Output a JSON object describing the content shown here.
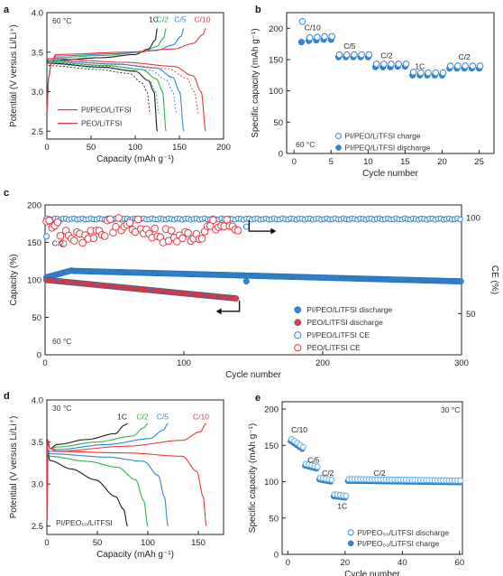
{
  "figure": {
    "panels": [
      {
        "id": "a",
        "label": "a"
      },
      {
        "id": "b",
        "label": "b"
      },
      {
        "id": "c",
        "label": "c"
      },
      {
        "id": "d",
        "label": "d"
      },
      {
        "id": "e",
        "label": "e"
      }
    ]
  },
  "colors": {
    "red": "#e8383d",
    "blue": "#2f86d6",
    "green": "#2fb34a",
    "black": "#1a1a1a",
    "gray": "#888888",
    "light_blue": "#5aaef0"
  },
  "chart_data": [
    {
      "id": "a",
      "type": "line",
      "xlabel": "Capacity (mAh g⁻¹)",
      "ylabel": "Potential (V versus Li/Li⁺)",
      "xlim": [
        0,
        200
      ],
      "ylim": [
        2.4,
        4.0
      ],
      "xticks": [
        0,
        50,
        100,
        150,
        200
      ],
      "yticks": [
        2.5,
        3.0,
        3.5,
        4.0
      ],
      "xtick_labels": [
        "0",
        "50",
        "100",
        "150",
        "200"
      ],
      "ytick_labels": [
        "2.5",
        "3.0",
        "3.5",
        "4.0"
      ],
      "temp": "60 °C",
      "rates": [
        {
          "label": "1C",
          "cap": 125,
          "color": "black"
        },
        {
          "label": "C/2",
          "cap": 135,
          "color": "green"
        },
        {
          "label": "C/5",
          "cap": 155,
          "color": "blue"
        },
        {
          "label": "C/10",
          "cap": 180,
          "color": "red"
        }
      ],
      "legend": [
        {
          "text": "PI/PEO/LiTFSI",
          "color": "red",
          "style": "solid"
        },
        {
          "text": "PEO/LiTFSI",
          "color": "red",
          "style": "solid"
        }
      ]
    },
    {
      "id": "b",
      "type": "scatter",
      "xlabel": "Cycle number",
      "ylabel": "Specific capacity (mAh g⁻¹)",
      "xlim": [
        -1,
        27
      ],
      "ylim": [
        0,
        225
      ],
      "xticks": [
        0,
        5,
        10,
        15,
        20,
        25
      ],
      "yticks": [
        0,
        50,
        100,
        150,
        200
      ],
      "xtick_labels": [
        "0",
        "5",
        "10",
        "15",
        "20",
        "25"
      ],
      "ytick_labels": [
        "0",
        "50",
        "100",
        "150",
        "200"
      ],
      "temp": "60 °C",
      "charge": [
        [
          1,
          208
        ],
        [
          2,
          182
        ],
        [
          3,
          183
        ],
        [
          4,
          184
        ],
        [
          5,
          184
        ],
        [
          6,
          155
        ],
        [
          7,
          155
        ],
        [
          8,
          155
        ],
        [
          9,
          155
        ],
        [
          10,
          155
        ],
        [
          11,
          140
        ],
        [
          12,
          140
        ],
        [
          13,
          140
        ],
        [
          14,
          140
        ],
        [
          15,
          140
        ],
        [
          16,
          127
        ],
        [
          17,
          126
        ],
        [
          18,
          126
        ],
        [
          19,
          126
        ],
        [
          20,
          126
        ],
        [
          21,
          137
        ],
        [
          22,
          137
        ],
        [
          23,
          137
        ],
        [
          24,
          137
        ],
        [
          25,
          137
        ]
      ],
      "discharge": [
        [
          1,
          178
        ],
        [
          2,
          180
        ],
        [
          3,
          181
        ],
        [
          4,
          182
        ],
        [
          5,
          182
        ],
        [
          6,
          154
        ],
        [
          7,
          154
        ],
        [
          8,
          154
        ],
        [
          9,
          154
        ],
        [
          10,
          154
        ],
        [
          11,
          138
        ],
        [
          12,
          138
        ],
        [
          13,
          138
        ],
        [
          14,
          139
        ],
        [
          15,
          139
        ],
        [
          16,
          125
        ],
        [
          17,
          125
        ],
        [
          18,
          125
        ],
        [
          19,
          125
        ],
        [
          20,
          125
        ],
        [
          21,
          136
        ],
        [
          22,
          136
        ],
        [
          23,
          136
        ],
        [
          24,
          136
        ],
        [
          25,
          136
        ]
      ],
      "annotations": [
        {
          "text": "C/10",
          "x": 2.5,
          "y": 197
        },
        {
          "text": "C/5",
          "x": 7.5,
          "y": 167
        },
        {
          "text": "C/2",
          "x": 12.5,
          "y": 152
        },
        {
          "text": "1C",
          "x": 17,
          "y": 135
        },
        {
          "text": "C/2",
          "x": 23,
          "y": 150
        }
      ],
      "legend": [
        {
          "text": "PI/PEO/LiTFSI charge",
          "marker": "open"
        },
        {
          "text": "PI/PEO/LiTFSI discharge",
          "marker": "filled"
        }
      ]
    },
    {
      "id": "c",
      "type": "scatter",
      "xlabel": "Cycle number",
      "ylabel": "Capacity (%)",
      "y2label": "CE (%)",
      "xlim": [
        0,
        300
      ],
      "ylim": [
        0,
        200
      ],
      "xticks": [
        0,
        100,
        200,
        300
      ],
      "yticks": [
        0,
        50,
        100,
        150,
        200
      ],
      "xtick_labels": [
        "0",
        "100",
        "200",
        "300"
      ],
      "ytick_labels": [
        "0",
        "50",
        "100",
        "150",
        "200"
      ],
      "y2ticks": [
        50,
        100
      ],
      "y2tick_labels": [
        "50",
        "100"
      ],
      "temp": "60 °C",
      "rate": "C/2",
      "series": [
        {
          "name": "PI/PEO/LiTFSI discharge",
          "color": "blue",
          "marker": "filled"
        },
        {
          "name": "PEO/LiTFSI discharge",
          "color": "red",
          "marker": "filled"
        },
        {
          "name": "PI/PEO/LiTFSI CE",
          "color": "blue",
          "marker": "open"
        },
        {
          "name": "PEO/LiTFSI CE",
          "color": "red",
          "marker": "open"
        }
      ]
    },
    {
      "id": "d",
      "type": "line",
      "xlabel": "Capacity (mAh g⁻¹)",
      "ylabel": "Potential (V versus Li/Li⁺)",
      "xlim": [
        0,
        175
      ],
      "ylim": [
        2.4,
        4.0
      ],
      "xticks": [
        0,
        50,
        100,
        150
      ],
      "yticks": [
        2.5,
        3.0,
        3.5,
        4.0
      ],
      "xtick_labels": [
        "0",
        "50",
        "100",
        "150"
      ],
      "ytick_labels": [
        "2.5",
        "3.0",
        "3.5",
        "4.0"
      ],
      "temp": "30 °C",
      "rates": [
        {
          "label": "1C",
          "cap": 80,
          "color": "black"
        },
        {
          "label": "C/2",
          "cap": 100,
          "color": "green"
        },
        {
          "label": "C/5",
          "cap": 120,
          "color": "blue"
        },
        {
          "label": "C/10",
          "cap": 158,
          "color": "red"
        }
      ],
      "legend_text": "PI/PEO₅₀/LiTFSI"
    },
    {
      "id": "e",
      "type": "scatter",
      "xlabel": "Cycle number",
      "ylabel": "Specific capacity (mAh g⁻¹)",
      "xlim": [
        -2,
        61
      ],
      "ylim": [
        0,
        210
      ],
      "xticks": [
        0,
        20,
        40,
        60
      ],
      "yticks": [
        0,
        50,
        100,
        150,
        200
      ],
      "xtick_labels": [
        "0",
        "20",
        "40",
        "60"
      ],
      "ytick_labels": [
        "0",
        "50",
        "100",
        "150",
        "200"
      ],
      "temp": "30 °C",
      "annotations": [
        {
          "text": "C/10",
          "x": 4,
          "y": 168
        },
        {
          "text": "C/5",
          "x": 9,
          "y": 126
        },
        {
          "text": "C/2",
          "x": 14,
          "y": 108
        },
        {
          "text": "1C",
          "x": 19,
          "y": 63
        },
        {
          "text": "C/2",
          "x": 32,
          "y": 108
        }
      ],
      "legend": [
        {
          "text": "PI/PEO₅₀/LiTFSI discharge",
          "marker": "open"
        },
        {
          "text": "PI/PEO₅₀/LiTFSI charge",
          "marker": "filled"
        }
      ]
    }
  ]
}
